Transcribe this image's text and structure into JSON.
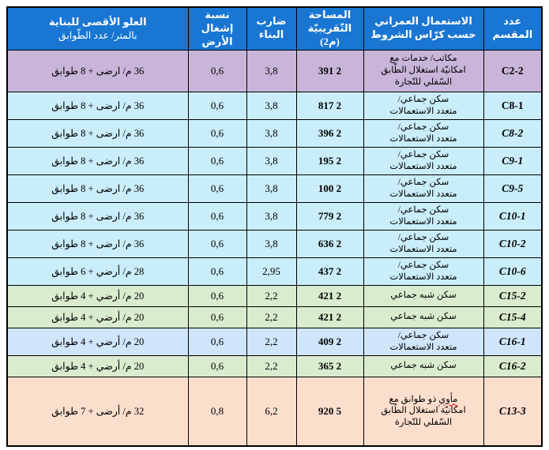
{
  "colors": {
    "header_bg": "#1976d2",
    "header_text": "#ffffff",
    "border": "#000000",
    "misspell_underline": "#e00000",
    "row_bg": {
      "purple": "#c9b5da",
      "cyan": "#c9edf9",
      "green": "#d9ecce",
      "blue": "#cfe5fa",
      "peach": "#fcdecd"
    }
  },
  "table": {
    "headers": {
      "plot": [
        "عدد المقسم"
      ],
      "usage": [
        "الاستعمال العمراني",
        "حسب كرّاس الشروط"
      ],
      "area": [
        "المساحة",
        "التّقريبيّة (م2)"
      ],
      "coefficient": [
        "ضارب",
        "البناء"
      ],
      "occupancy": [
        "نسبة إشغال",
        "الأرض"
      ],
      "max_height": [
        "العلو الأقصى للبناية",
        "بالمتر/ عدد الطّوابق"
      ]
    },
    "rows": [
      {
        "plot": "C2-2",
        "italic": false,
        "bg": "purple",
        "usage_lines": [
          "مكاتب/ خدمات مع",
          "امكانيّة استغلال الطّابق",
          "السّفلي للتّجارة"
        ],
        "area": "2 391",
        "coefficient": "3,8",
        "occupancy": "0,6",
        "max_height": "36 م/ ارضى + 8 طوابق"
      },
      {
        "plot": "C8-1",
        "italic": false,
        "bg": "cyan",
        "usage_lines": [
          "سكن جماعي/",
          "متعدد الاستعمالات"
        ],
        "area": "2 817",
        "coefficient": "3,8",
        "occupancy": "0,6",
        "max_height": "36 م/ ارضى + 8 طوابق"
      },
      {
        "plot": "C8-2",
        "italic": true,
        "bg": "cyan",
        "usage_lines": [
          "سكن جماعي/",
          "متعدد الاستعمالات"
        ],
        "area": "2 396",
        "coefficient": "3,8",
        "occupancy": "0,6",
        "max_height": "36 م/ ارضى + 8 طوابق"
      },
      {
        "plot": "C9-1",
        "italic": true,
        "bg": "cyan",
        "usage_lines": [
          "سكن جماعي/",
          "متعدد الاستعمالات"
        ],
        "area": "2 195",
        "coefficient": "3,8",
        "occupancy": "0,6",
        "max_height": "36 م/ ارضى + 8 طوابق"
      },
      {
        "plot": "C9-5",
        "italic": true,
        "bg": "cyan",
        "usage_lines": [
          "سكن جماعي/",
          "متعدد الاستعمالات"
        ],
        "area": "2 100",
        "coefficient": "3,8",
        "occupancy": "0,6",
        "max_height": "36 م/ ارضى + 8 طوابق"
      },
      {
        "plot": "C10-1",
        "italic": true,
        "bg": "cyan",
        "usage_lines": [
          "سكن جماعي/",
          "متعدد الاستعمالات"
        ],
        "area": "2 779",
        "coefficient": "3,8",
        "occupancy": "0,6",
        "max_height": "36 م/ ارضى + 8 طوابق"
      },
      {
        "plot": "C10-2",
        "italic": true,
        "bg": "cyan",
        "usage_lines": [
          "سكن جماعي/",
          "متعدد الاستعمالات"
        ],
        "area": "2 636",
        "coefficient": "3,8",
        "occupancy": "0,6",
        "max_height": "36 م/ ارضى + 8 طوابق"
      },
      {
        "plot": "C10-6",
        "italic": true,
        "bg": "cyan",
        "usage_lines": [
          "سكن جماعي/",
          "متعدد الاستعمالات"
        ],
        "area": "2 437",
        "coefficient": "2,95",
        "occupancy": "0,6",
        "max_height": "28 م/ أرضي + 6 طوابق"
      },
      {
        "plot": "C15-2",
        "italic": true,
        "bg": "green",
        "usage_lines": [
          "سكن شبه جماعي"
        ],
        "area": "2 421",
        "coefficient": "2,2",
        "occupancy": "0,6",
        "max_height": "20 م/ أرضي + 4 طوابق"
      },
      {
        "plot": "C15-4",
        "italic": true,
        "bg": "green",
        "usage_lines": [
          "سكن شبه جماعي"
        ],
        "area": "2 421",
        "coefficient": "2,2",
        "occupancy": "0,6",
        "max_height": "20 م/ أرضي + 4 طوابق"
      },
      {
        "plot": "C16-1",
        "italic": true,
        "bg": "blue",
        "usage_lines": [
          "سكن جماعي/",
          "متعدد الاستعمالات"
        ],
        "area": "2 409",
        "coefficient": "2,2",
        "occupancy": "0,6",
        "max_height": "20 م/ أرضي + 4 طوابق"
      },
      {
        "plot": "C16-2",
        "italic": true,
        "bg": "green",
        "usage_lines": [
          "سكن شبه جماعي"
        ],
        "area": "2 365",
        "coefficient": "2,2",
        "occupancy": "0,6",
        "max_height": "20 م/ أرضي + 4 طوابق"
      },
      {
        "plot": "C13-3",
        "italic": true,
        "bg": "peach",
        "usage_lines": [
          "مأوي ذو طوابق مع",
          "امكانيّة استغلال الطّابق",
          "السّفلي للتّجارة"
        ],
        "misspelled": "مأوي",
        "area": "5 920",
        "coefficient": "6,2",
        "occupancy": "0,8",
        "max_height": "32 م/ أرضى + 7 طوابق"
      }
    ]
  }
}
